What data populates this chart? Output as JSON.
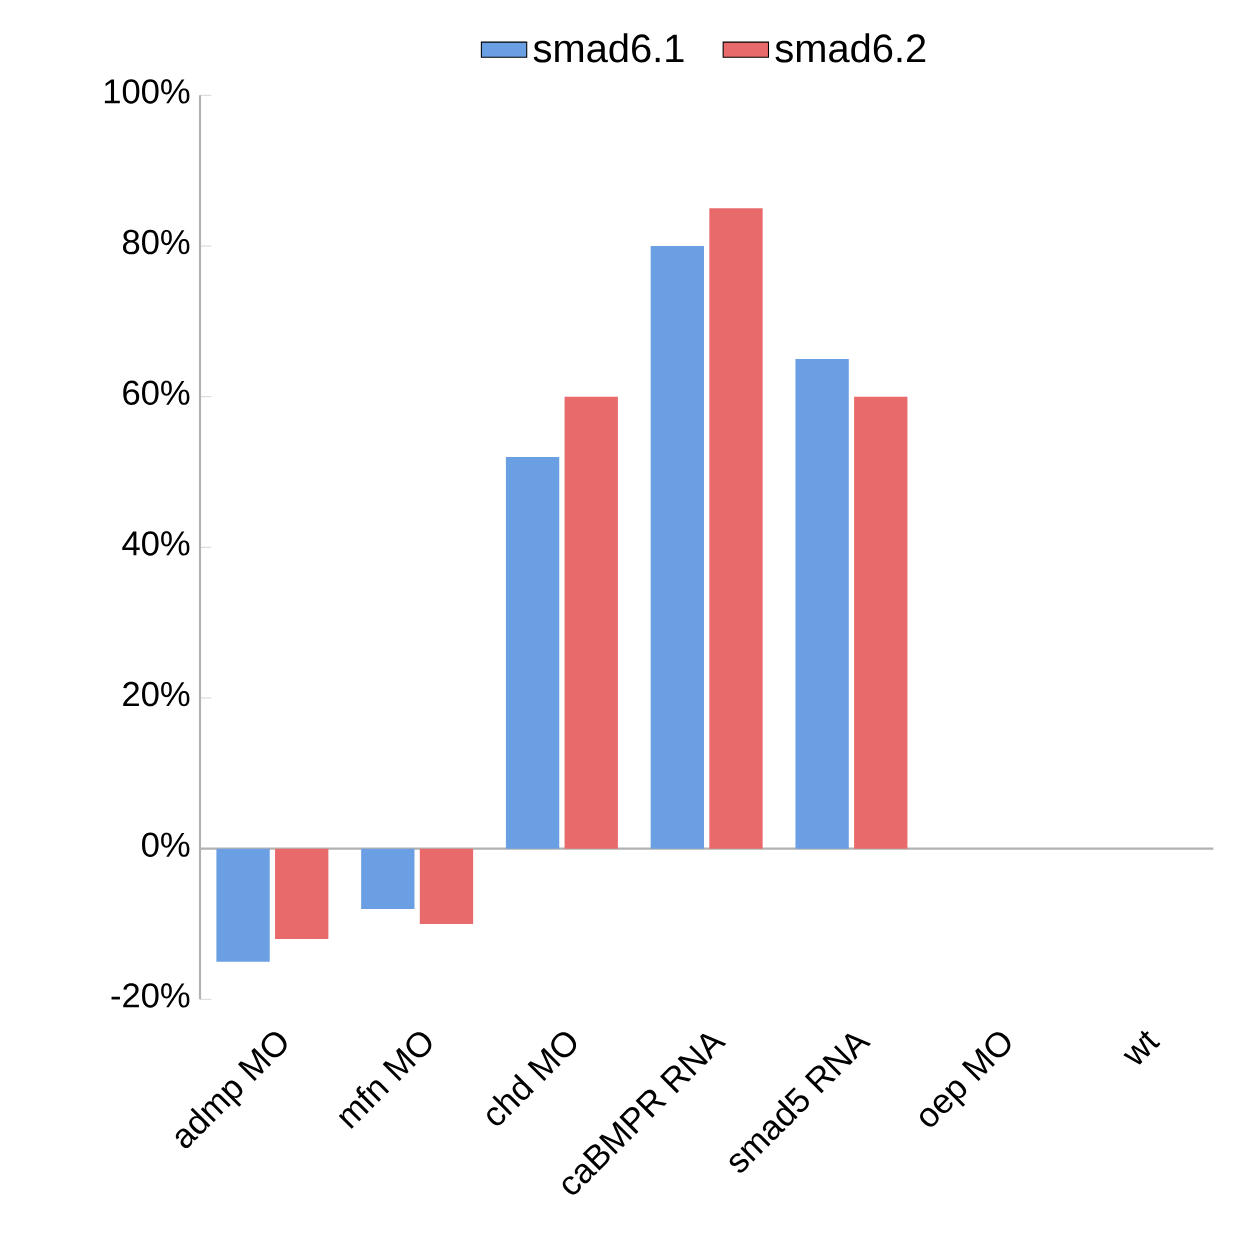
{
  "chart_data": {
    "type": "bar",
    "categories": [
      "admp MO",
      "mfn MO",
      "chd MO",
      "caBMPR RNA",
      "smad5 RNA",
      "oep MO",
      "wt"
    ],
    "series": [
      {
        "name": "smad6.1",
        "color": "#6a9fe3",
        "values": [
          -15,
          -8,
          52,
          80,
          65,
          0,
          0
        ]
      },
      {
        "name": "smad6.2",
        "color": "#e96a6a",
        "values": [
          -12,
          -10,
          60,
          85,
          60,
          0,
          0
        ]
      }
    ],
    "ylim": [
      -20,
      100
    ],
    "yticks": [
      {
        "value": -20,
        "label": "-20%"
      },
      {
        "value": 0,
        "label": "0%"
      },
      {
        "value": 20,
        "label": "20%"
      },
      {
        "value": 40,
        "label": "40%"
      },
      {
        "value": 60,
        "label": "60%"
      },
      {
        "value": 80,
        "label": "80%"
      },
      {
        "value": 100,
        "label": "100%"
      }
    ],
    "legend": "top"
  }
}
